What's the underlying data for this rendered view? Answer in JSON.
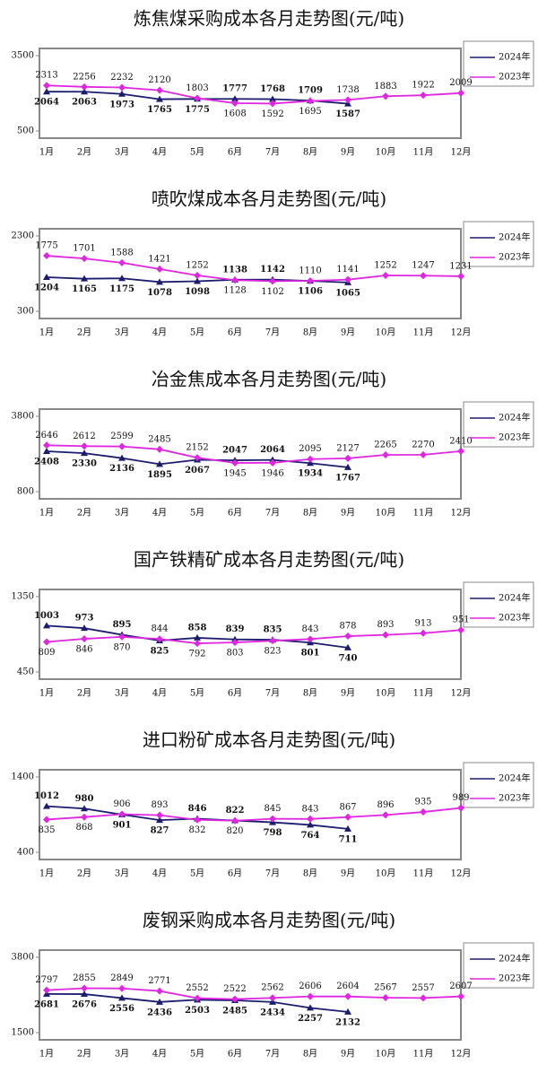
{
  "chart_data": [
    {
      "type": "line",
      "title": "炼焦煤采购成本各月走势图(元/吨)",
      "categories": [
        "1月",
        "2月",
        "3月",
        "4月",
        "5月",
        "6月",
        "7月",
        "8月",
        "9月",
        "10月",
        "11月",
        "12月"
      ],
      "ylim": [
        500,
        3500
      ],
      "yticks": [
        500,
        3500
      ],
      "legend": "upper right",
      "series": [
        {
          "name": "2024年",
          "color": "#1c1c6e",
          "values": [
            2064,
            2063,
            1973,
            1765,
            1775,
            1777,
            1768,
            1709,
            1587,
            null,
            null,
            null
          ]
        },
        {
          "name": "2023年",
          "color": "#e026e0",
          "values": [
            2313,
            2256,
            2232,
            2120,
            1803,
            1608,
            1592,
            1695,
            1738,
            1883,
            1922,
            2009
          ]
        }
      ]
    },
    {
      "type": "line",
      "title": "喷吹煤成本各月走势图(元/吨)",
      "categories": [
        "1月",
        "2月",
        "3月",
        "4月",
        "5月",
        "6月",
        "7月",
        "8月",
        "9月",
        "10月",
        "11月",
        "12月"
      ],
      "ylim": [
        300,
        2300
      ],
      "yticks": [
        300,
        2300
      ],
      "legend": "upper right",
      "series": [
        {
          "name": "2024年",
          "color": "#1c1c6e",
          "values": [
            1204,
            1165,
            1175,
            1078,
            1098,
            1138,
            1142,
            1106,
            1065,
            null,
            null,
            null
          ]
        },
        {
          "name": "2023年",
          "color": "#e026e0",
          "values": [
            1775,
            1701,
            1588,
            1421,
            1252,
            1128,
            1102,
            1110,
            1141,
            1252,
            1247,
            1231
          ]
        }
      ]
    },
    {
      "type": "line",
      "title": "冶金焦成本各月走势图(元/吨)",
      "categories": [
        "1月",
        "2月",
        "3月",
        "4月",
        "5月",
        "6月",
        "7月",
        "8月",
        "9月",
        "10月",
        "11月",
        "12月"
      ],
      "ylim": [
        800,
        3800
      ],
      "yticks": [
        800,
        3800
      ],
      "legend": "upper right",
      "series": [
        {
          "name": "2024年",
          "color": "#1c1c6e",
          "values": [
            2408,
            2330,
            2136,
            1895,
            2067,
            2047,
            2064,
            1934,
            1767,
            null,
            null,
            null
          ]
        },
        {
          "name": "2023年",
          "color": "#e026e0",
          "values": [
            2646,
            2612,
            2599,
            2485,
            2152,
            1945,
            1946,
            2095,
            2127,
            2265,
            2270,
            2410
          ]
        }
      ]
    },
    {
      "type": "line",
      "title": "国产铁精矿成本各月走势图(元/吨)",
      "categories": [
        "1月",
        "2月",
        "3月",
        "4月",
        "5月",
        "6月",
        "7月",
        "8月",
        "9月",
        "10月",
        "11月",
        "12月"
      ],
      "ylim": [
        450,
        1350
      ],
      "yticks": [
        450,
        1350
      ],
      "legend": "upper right",
      "series": [
        {
          "name": "2024年",
          "color": "#1c1c6e",
          "values": [
            1003,
            973,
            895,
            825,
            858,
            839,
            835,
            801,
            740,
            null,
            null,
            null
          ]
        },
        {
          "name": "2023年",
          "color": "#e026e0",
          "values": [
            809,
            846,
            870,
            844,
            792,
            803,
            823,
            843,
            878,
            893,
            913,
            951
          ]
        }
      ]
    },
    {
      "type": "line",
      "title": "进口粉矿成本各月走势图(元/吨)",
      "categories": [
        "1月",
        "2月",
        "3月",
        "4月",
        "5月",
        "6月",
        "7月",
        "8月",
        "9月",
        "10月",
        "11月",
        "12月"
      ],
      "ylim": [
        400,
        1400
      ],
      "yticks": [
        400,
        1400
      ],
      "legend": "upper right",
      "series": [
        {
          "name": "2024年",
          "color": "#1c1c6e",
          "values": [
            1012,
            980,
            901,
            827,
            846,
            822,
            798,
            764,
            711,
            null,
            null,
            null
          ]
        },
        {
          "name": "2023年",
          "color": "#e026e0",
          "values": [
            835,
            868,
            906,
            893,
            832,
            820,
            845,
            843,
            867,
            896,
            935,
            989
          ]
        }
      ]
    },
    {
      "type": "line",
      "title": "废钢采购成本各月走势图(元/吨)",
      "categories": [
        "1月",
        "2月",
        "3月",
        "4月",
        "5月",
        "6月",
        "7月",
        "8月",
        "9月",
        "10月",
        "11月",
        "12月"
      ],
      "ylim": [
        1500,
        3800
      ],
      "yticks": [
        1500,
        3800
      ],
      "legend": "upper right",
      "series": [
        {
          "name": "2024年",
          "color": "#1c1c6e",
          "values": [
            2681,
            2676,
            2556,
            2436,
            2503,
            2485,
            2434,
            2257,
            2132,
            null,
            null,
            null
          ]
        },
        {
          "name": "2023年",
          "color": "#e026e0",
          "values": [
            2797,
            2855,
            2849,
            2771,
            2552,
            2522,
            2562,
            2606,
            2604,
            2567,
            2557,
            2607
          ]
        }
      ]
    }
  ]
}
